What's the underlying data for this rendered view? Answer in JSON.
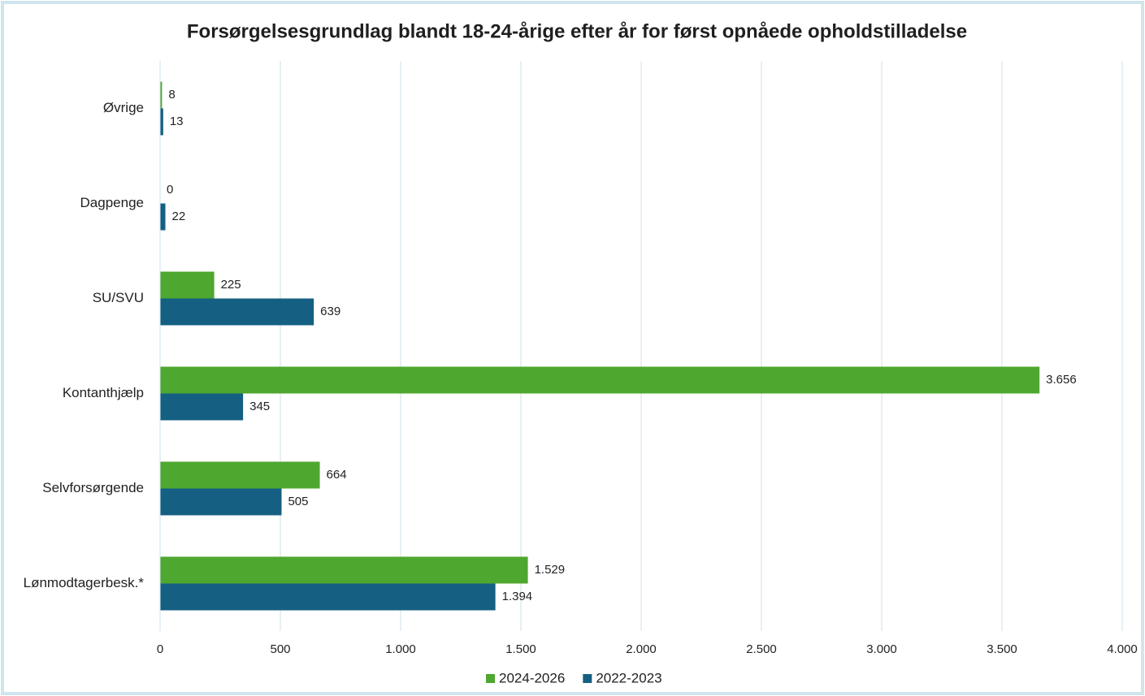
{
  "chart_data": {
    "type": "hbar",
    "title": "Forsørgelsesgrundlag blandt 18-24-årige efter år for først opnåede opholdstilladelse",
    "categories": [
      "Øvrige",
      "Dagpenge",
      "SU/SVU",
      "Kontanthjælp",
      "Selvforsørgende",
      "Lønmodtagerbesk.*"
    ],
    "series": [
      {
        "name": "2024-2026",
        "color": "#4ea72e",
        "values": [
          8,
          0,
          225,
          3656,
          664,
          1529
        ],
        "value_labels": [
          "8",
          "0",
          "225",
          "3.656",
          "664",
          "1.529"
        ]
      },
      {
        "name": "2022-2023",
        "color": "#156082",
        "values": [
          13,
          22,
          639,
          345,
          505,
          1394
        ],
        "value_labels": [
          "13",
          "22",
          "639",
          "345",
          "505",
          "1.394"
        ]
      }
    ],
    "xlim": [
      0,
      4000
    ],
    "xticks": [
      0,
      500,
      {
        "value": 1000,
        "label": "1.000"
      },
      {
        "value": 1500,
        "label": "1.500"
      },
      {
        "value": 2000,
        "label": "2.000"
      },
      {
        "value": 2500,
        "label": "2.500"
      },
      {
        "value": 3000,
        "label": "3.000"
      },
      {
        "value": 3500,
        "label": "3.500"
      },
      {
        "value": 4000,
        "label": "4.000"
      }
    ],
    "grid": true,
    "legend": "bottom"
  }
}
